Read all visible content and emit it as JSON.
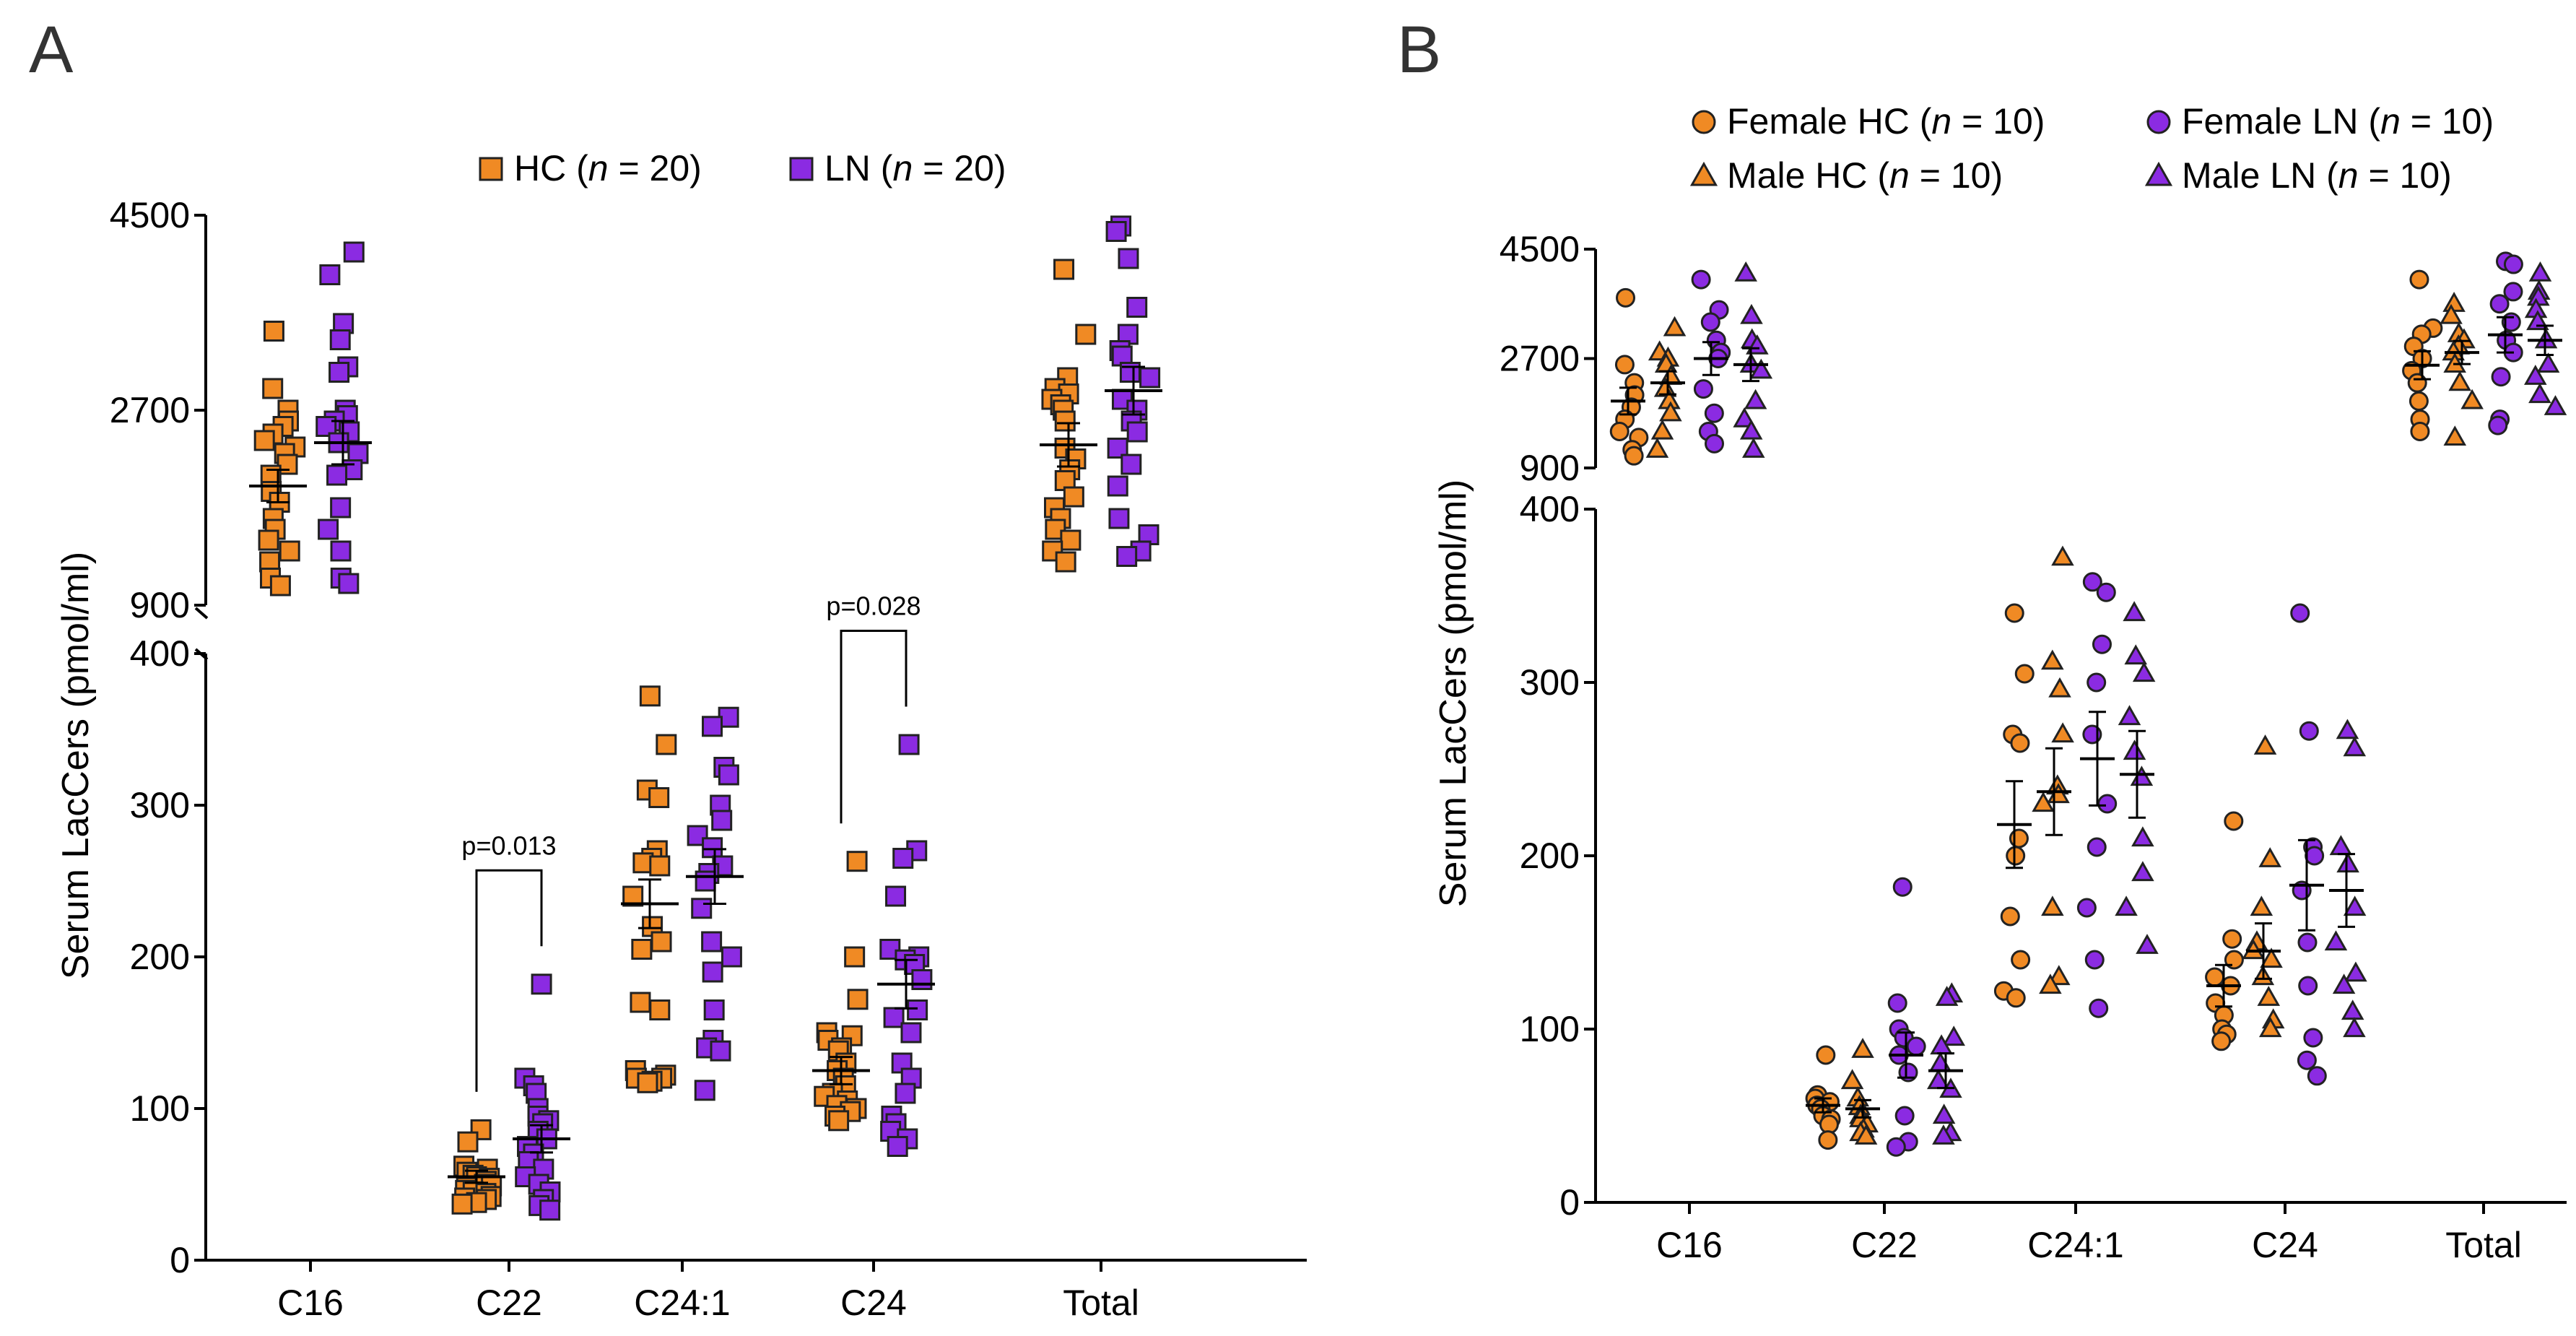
{
  "chart_data": [
    {
      "panel": "A",
      "type": "scatter",
      "ylabel": "Serum LacCers (pmol/ml)",
      "categories": [
        "C16",
        "C22",
        "C24:1",
        "C24",
        "Total"
      ],
      "y_axis_segments": [
        {
          "range": [
            900,
            4500
          ],
          "ticks": [
            "900",
            "2700",
            "4500"
          ]
        },
        {
          "range": [
            0,
            400
          ],
          "ticks": [
            "0",
            "100",
            "200",
            "300",
            "400"
          ]
        }
      ],
      "legend": {
        "placement": "top",
        "entries": [
          {
            "series": "HC",
            "label": "HC (",
            "n_label": "n",
            "suffix": " = 20)"
          },
          {
            "series": "LN",
            "label": "LN (",
            "n_label": "n",
            "suffix": " = 20)"
          }
        ]
      },
      "series": [
        {
          "name": "HC",
          "marker": "square",
          "color": "#f08a24",
          "values": {
            "C16": [
              3430,
              2900,
              2700,
              2600,
              2550,
              2480,
              2420,
              2360,
              2300,
              2200,
              2100,
              1950,
              1850,
              1700,
              1600,
              1500,
              1400,
              1300,
              1150,
              1080
            ],
            "C22": [
              86,
              78,
              62,
              60,
              58,
              56,
              55,
              54,
              52,
              50,
              49,
              48,
              46,
              45,
              44,
              42,
              41,
              40,
              38,
              37
            ],
            "C24:1": [
              372,
              340,
              310,
              305,
              270,
              265,
              262,
              260,
              240,
              220,
              210,
              205,
              170,
              165,
              125,
              122,
              120,
              120,
              118,
              117
            ],
            "C24": [
              263,
              200,
              172,
              150,
              148,
              145,
              140,
              138,
              130,
              125,
              120,
              115,
              110,
              108,
              105,
              102,
              100,
              98,
              95,
              92
            ],
            "Total": [
              4000,
              3400,
              3000,
              2900,
              2850,
              2800,
              2750,
              2700,
              2600,
              2350,
              2250,
              2150,
              2050,
              1900,
              1800,
              1700,
              1600,
              1500,
              1400,
              1300
            ]
          },
          "mean": {
            "C16": 2000,
            "C22": 55,
            "C24:1": 235,
            "C24": 125,
            "Total": 2380
          },
          "sem": {
            "C16": 150,
            "C22": 4,
            "C24:1": 16,
            "C24": 9,
            "Total": 200
          }
        },
        {
          "name": "LN",
          "marker": "square",
          "color": "#8b2be2",
          "values": {
            "C16": [
              4160,
              3950,
              3500,
              3350,
              3100,
              3050,
              2700,
              2650,
              2600,
              2550,
              2500,
              2400,
              2300,
              2150,
              2100,
              1800,
              1600,
              1400,
              1150,
              1100
            ],
            "C22": [
              182,
              120,
              115,
              110,
              100,
              95,
              92,
              90,
              85,
              80,
              75,
              70,
              65,
              60,
              55,
              50,
              45,
              40,
              36,
              33
            ],
            "C24:1": [
              358,
              352,
              325,
              320,
              300,
              290,
              280,
              272,
              260,
              255,
              250,
              232,
              210,
              200,
              190,
              165,
              145,
              140,
              138,
              112
            ],
            "C24": [
              340,
              270,
              265,
              240,
              205,
              200,
              198,
              195,
              185,
              165,
              160,
              150,
              130,
              120,
              110,
              95,
              90,
              85,
              80,
              75
            ],
            "Total": [
              4400,
              4350,
              4100,
              3650,
              3400,
              3250,
              3200,
              3050,
              3000,
              2800,
              2700,
              2600,
              2500,
              2350,
              2200,
              2000,
              1700,
              1550,
              1400,
              1350
            ]
          },
          "mean": {
            "C16": 2400,
            "C22": 80,
            "C24:1": 253,
            "C24": 182,
            "Total": 2880
          },
          "sem": {
            "C16": 200,
            "C22": 9,
            "C24:1": 18,
            "C24": 16,
            "Total": 220
          }
        }
      ],
      "annotations": [
        {
          "text": "p=0.013",
          "category": "C22"
        },
        {
          "text": "p=0.028",
          "category": "C24"
        }
      ]
    },
    {
      "panel": "B",
      "type": "scatter",
      "ylabel": "Serum LacCers (pmol/ml)",
      "categories": [
        "C16",
        "C22",
        "C24:1",
        "C24",
        "Total"
      ],
      "y_axis_segments": [
        {
          "range": [
            900,
            4500
          ],
          "ticks": [
            "900",
            "2700",
            "4500"
          ]
        },
        {
          "range": [
            0,
            400
          ],
          "ticks": [
            "0",
            "100",
            "200",
            "300",
            "400"
          ]
        }
      ],
      "legend": {
        "placement": "top-right",
        "entries": [
          {
            "series": "Female HC",
            "label": "Female HC (",
            "n_label": "n",
            "suffix": " = 10)"
          },
          {
            "series": "Female LN",
            "label": "Female LN (",
            "n_label": "n",
            "suffix": " = 10)"
          },
          {
            "series": "Male HC",
            "label": "Male HC (",
            "n_label": "n",
            "suffix": " = 10)"
          },
          {
            "series": "Male LN",
            "label": "Male LN (",
            "n_label": "n",
            "suffix": " = 10)"
          }
        ]
      },
      "series": [
        {
          "name": "Female HC",
          "marker": "circle",
          "color": "#f08a24",
          "values": {
            "C16": [
              3700,
              2600,
              2300,
              2100,
              1900,
              1700,
              1500,
              1400,
              1200,
              1100
            ],
            "C22": [
              85,
              62,
              60,
              58,
              56,
              54,
              50,
              48,
              45,
              36
            ],
            "C24:1": [
              340,
              305,
              270,
              265,
              210,
              200,
              165,
              140,
              122,
              118
            ],
            "C24": [
              220,
              152,
              140,
              130,
              125,
              115,
              108,
              100,
              97,
              93
            ],
            "Total": [
              4000,
              3200,
              3100,
              2900,
              2700,
              2500,
              2300,
              2000,
              1700,
              1500
            ]
          },
          "mean": {
            "C16": 2000,
            "C22": 56,
            "C24:1": 218,
            "C24": 125,
            "Total": 2590
          },
          "sem": {
            "C16": 220,
            "C22": 4,
            "C24:1": 25,
            "C24": 12,
            "Total": 230
          }
        },
        {
          "name": "Male HC",
          "marker": "triangle",
          "color": "#f08a24",
          "values": {
            "C16": [
              3200,
              2800,
              2700,
              2600,
              2400,
              2200,
              2000,
              1800,
              1500,
              1200
            ],
            "C22": [
              88,
              70,
              60,
              55,
              50,
              48,
              45,
              42,
              40,
              38
            ],
            "C24:1": [
              372,
              312,
              296,
              270,
              240,
              235,
              230,
              170,
              130,
              125
            ],
            "C24": [
              263,
              198,
              170,
              150,
              145,
              140,
              130,
              118,
              105,
              100
            ],
            "Total": [
              3600,
              3400,
              3100,
              3000,
              2900,
              2800,
              2600,
              2300,
              2000,
              1400
            ]
          },
          "mean": {
            "C16": 2300,
            "C22": 54,
            "C24:1": 237,
            "C24": 145,
            "Total": 2800
          },
          "sem": {
            "C16": 190,
            "C22": 5,
            "C24:1": 25,
            "C24": 16,
            "Total": 190
          }
        },
        {
          "name": "Female LN",
          "marker": "circle",
          "color": "#8b2be2",
          "values": {
            "C16": [
              4000,
              3500,
              3300,
              3000,
              2800,
              2700,
              2200,
              1800,
              1500,
              1300
            ],
            "C22": [
              182,
              115,
              100,
              95,
              90,
              85,
              75,
              50,
              35,
              32
            ],
            "C24:1": [
              358,
              352,
              322,
              300,
              270,
              230,
              205,
              170,
              140,
              112
            ],
            "C24": [
              340,
              272,
              205,
              200,
              180,
              150,
              125,
              95,
              82,
              73
            ],
            "Total": [
              4300,
              4250,
              3800,
              3600,
              3300,
              3000,
              2800,
              2400,
              1700,
              1600
            ]
          },
          "mean": {
            "C16": 2700,
            "C22": 85,
            "C24:1": 256,
            "C24": 183,
            "Total": 3090
          },
          "sem": {
            "C16": 270,
            "C22": 13,
            "C24:1": 27,
            "C24": 26,
            "Total": 290
          }
        },
        {
          "name": "Male LN",
          "marker": "triangle",
          "color": "#8b2be2",
          "values": {
            "C16": [
              4100,
              3400,
              3000,
              2900,
              2600,
              2500,
              2000,
              1700,
              1500,
              1200
            ],
            "C22": [
              120,
              118,
              95,
              90,
              80,
              70,
              65,
              50,
              40,
              38
            ],
            "C24:1": [
              340,
              315,
              305,
              280,
              260,
              245,
              210,
              190,
              170,
              148
            ],
            "C24": [
              272,
              262,
              205,
              195,
              170,
              150,
              132,
              125,
              110,
              100
            ],
            "Total": [
              4100,
              3800,
              3700,
              3500,
              3300,
              3000,
              2600,
              2400,
              2100,
              1900
            ]
          },
          "mean": {
            "C16": 2600,
            "C22": 76,
            "C24:1": 247,
            "C24": 180,
            "Total": 3000
          },
          "sem": {
            "C16": 270,
            "C22": 10,
            "C24:1": 25,
            "C24": 21,
            "Total": 240
          }
        }
      ]
    }
  ]
}
